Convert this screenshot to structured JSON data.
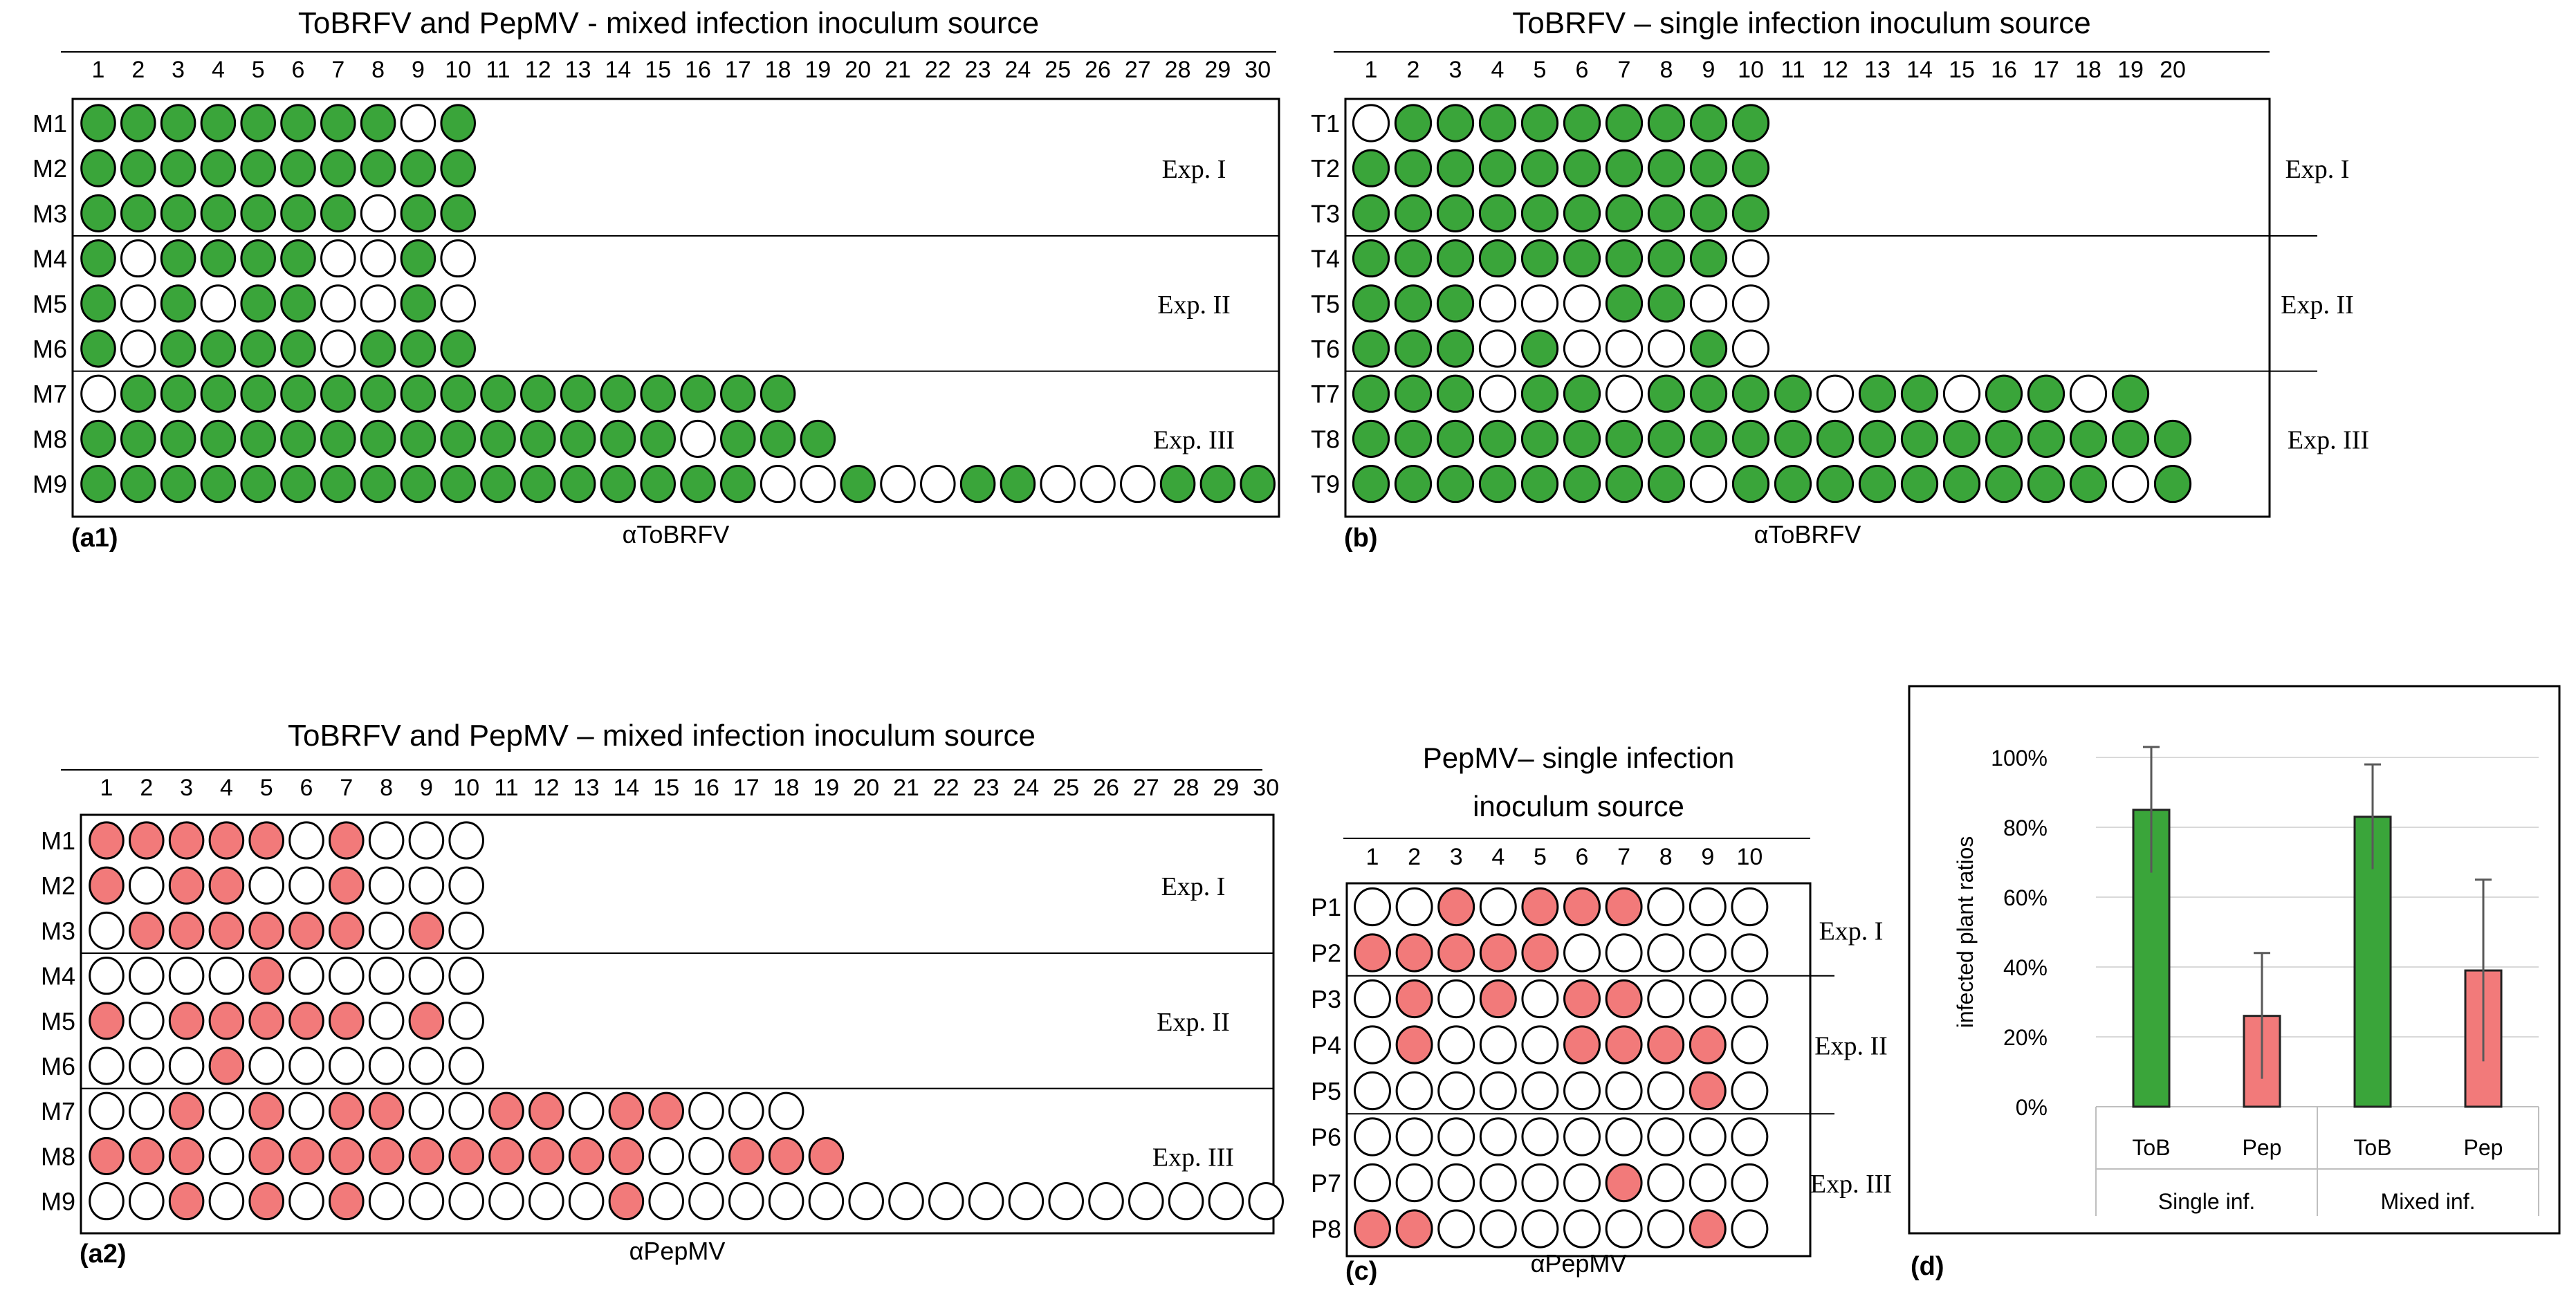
{
  "colors": {
    "green": "#3aa53a",
    "red": "#f27a7a",
    "empty": "#ffffff",
    "outline": "#000000",
    "gridline": "#d9d9d9",
    "errorbar": "#595959"
  },
  "grid_panels": [
    {
      "id": "a1",
      "title_lines": [
        "ToBRFV and PepMV - mixed infection inoculum source"
      ],
      "panel_label": "(a1)",
      "antibody": "αToBRFV",
      "fill": "green",
      "columns": [
        "1",
        "2",
        "3",
        "4",
        "5",
        "6",
        "7",
        "8",
        "9",
        "10",
        "11",
        "12",
        "13",
        "14",
        "15",
        "16",
        "17",
        "18",
        "19",
        "20",
        "21",
        "22",
        "23",
        "24",
        "25",
        "26",
        "27",
        "28",
        "29",
        "30"
      ],
      "groups": [
        {
          "label": "Exp. I",
          "rows": [
            {
              "name": "M1",
              "cells": "1111111101"
            },
            {
              "name": "M2",
              "cells": "1111111111"
            },
            {
              "name": "M3",
              "cells": "1111111011"
            }
          ]
        },
        {
          "label": "Exp. II",
          "rows": [
            {
              "name": "M4",
              "cells": "1011110010"
            },
            {
              "name": "M5",
              "cells": "1010110010"
            },
            {
              "name": "M6",
              "cells": "1011110111"
            }
          ]
        },
        {
          "label": "Exp. III",
          "rows": [
            {
              "name": "M7",
              "cells": "011111111111111111"
            },
            {
              "name": "M8",
              "cells": "1111111111111110111"
            },
            {
              "name": "M9",
              "cells": "111111111111111110010011000111"
            }
          ]
        }
      ]
    },
    {
      "id": "b",
      "title_lines": [
        "ToBRFV – single infection inoculum source"
      ],
      "panel_label": "(b)",
      "antibody": "αToBRFV",
      "fill": "green",
      "columns": [
        "1",
        "2",
        "3",
        "4",
        "5",
        "6",
        "7",
        "8",
        "9",
        "10",
        "11",
        "12",
        "13",
        "14",
        "15",
        "16",
        "17",
        "18",
        "19",
        "20"
      ],
      "groups": [
        {
          "label": "Exp. I",
          "rows": [
            {
              "name": "T1",
              "cells": "0111111111"
            },
            {
              "name": "T2",
              "cells": "1111111111"
            },
            {
              "name": "T3",
              "cells": "1111111111"
            }
          ]
        },
        {
          "label": "Exp. II",
          "rows": [
            {
              "name": "T4",
              "cells": "1111111110"
            },
            {
              "name": "T5",
              "cells": "1110001100"
            },
            {
              "name": "T6",
              "cells": "1110100010"
            }
          ]
        },
        {
          "label": "Exp. III",
          "rows": [
            {
              "name": "T7",
              "cells": "1110110111101101101"
            },
            {
              "name": "T8",
              "cells": "11111111111111111111"
            },
            {
              "name": "T9",
              "cells": "11111111011111111101"
            }
          ]
        }
      ]
    },
    {
      "id": "a2",
      "title_lines": [
        "ToBRFV and PepMV – mixed infection inoculum source"
      ],
      "panel_label": "(a2)",
      "antibody": "αPepMV",
      "fill": "red",
      "columns": [
        "1",
        "2",
        "3",
        "4",
        "5",
        "6",
        "7",
        "8",
        "9",
        "10",
        "11",
        "12",
        "13",
        "14",
        "15",
        "16",
        "17",
        "18",
        "19",
        "20",
        "21",
        "22",
        "23",
        "24",
        "25",
        "26",
        "27",
        "28",
        "29",
        "30"
      ],
      "groups": [
        {
          "label": "Exp. I",
          "rows": [
            {
              "name": "M1",
              "cells": "1111101000"
            },
            {
              "name": "M2",
              "cells": "1011001000"
            },
            {
              "name": "M3",
              "cells": "0111111010"
            }
          ]
        },
        {
          "label": "Exp. II",
          "rows": [
            {
              "name": "M4",
              "cells": "0000100000"
            },
            {
              "name": "M5",
              "cells": "1011111010"
            },
            {
              "name": "M6",
              "cells": "0001000000"
            }
          ]
        },
        {
          "label": "Exp. III",
          "rows": [
            {
              "name": "M7",
              "cells": "001010110011011000"
            },
            {
              "name": "M8",
              "cells": "1110111111111100111"
            },
            {
              "name": "M9",
              "cells": "001010100000010000000000000000"
            }
          ]
        }
      ]
    },
    {
      "id": "c",
      "title_lines": [
        "PepMV– single infection",
        "inoculum source"
      ],
      "panel_label": "(c)",
      "antibody": "αPepMV",
      "fill": "red",
      "columns": [
        "1",
        "2",
        "3",
        "4",
        "5",
        "6",
        "7",
        "8",
        "9",
        "10"
      ],
      "groups": [
        {
          "label": "Exp. I",
          "rows": [
            {
              "name": "P1",
              "cells": "0010111000"
            },
            {
              "name": "P2",
              "cells": "1111100000"
            }
          ]
        },
        {
          "label": "Exp. II",
          "rows": [
            {
              "name": "P3",
              "cells": "0101011000"
            },
            {
              "name": "P4",
              "cells": "0100011110"
            },
            {
              "name": "P5",
              "cells": "0000000010"
            }
          ]
        },
        {
          "label": "Exp. III",
          "rows": [
            {
              "name": "P6",
              "cells": "0000000000"
            },
            {
              "name": "P7",
              "cells": "0000001000"
            },
            {
              "name": "P8",
              "cells": "1100000010"
            }
          ]
        }
      ]
    }
  ],
  "chart_data": {
    "type": "bar",
    "panel_label": "(d)",
    "ylabel": "infected plant ratios",
    "ylim": [
      0,
      100
    ],
    "yticks": [
      "0%",
      "20%",
      "40%",
      "60%",
      "80%",
      "100%"
    ],
    "categories": [
      "ToB",
      "Pep",
      "ToB",
      "Pep"
    ],
    "groups": [
      "Single inf.",
      "Mixed inf."
    ],
    "values": [
      85,
      26,
      83,
      39
    ],
    "errors": [
      18,
      18,
      15,
      26
    ],
    "bar_colors": [
      "green",
      "red",
      "green",
      "red"
    ]
  }
}
